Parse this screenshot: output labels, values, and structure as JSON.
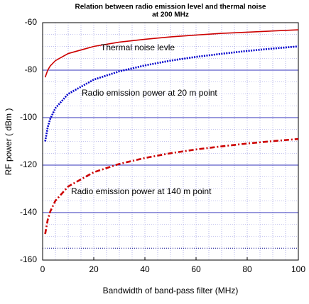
{
  "chart_data": {
    "type": "line",
    "title": [
      "Relation between radio emission level and thermal noise",
      "at 200 MHz"
    ],
    "x_label": "Bandwidth of band-pass filter (MHz)",
    "y_label": "RF power ( dBm )",
    "x": [
      1,
      2,
      3,
      5,
      10,
      20,
      30,
      40,
      50,
      60,
      70,
      80,
      90,
      100
    ],
    "series": [
      {
        "name": "Thermal noise levle",
        "color": "#cc0000",
        "style": "solid",
        "values": [
          -83,
          -80,
          -78.2,
          -76,
          -73,
          -70,
          -68.2,
          -67,
          -66,
          -65.2,
          -64.5,
          -64,
          -63.5,
          -63
        ]
      },
      {
        "name": "Radio emission power at 20 m point",
        "color": "#0000cc",
        "style": "dotted",
        "values": [
          -110,
          -104,
          -100.5,
          -96,
          -90,
          -84,
          -80.5,
          -78,
          -76,
          -74.4,
          -73.1,
          -71.9,
          -70.9,
          -70
        ]
      },
      {
        "name": "Radio emission power at 140 m point",
        "color": "#cc0000",
        "style": "dashdot",
        "values": [
          -149,
          -143,
          -139.5,
          -135,
          -129,
          -123,
          -119.5,
          -117,
          -115,
          -113.4,
          -112.1,
          -110.9,
          -109.9,
          -109
        ]
      }
    ],
    "reference_line": -155,
    "xlim": [
      0,
      100
    ],
    "xticks": [
      0,
      20,
      40,
      60,
      80,
      100
    ],
    "ylim": [
      -160,
      -60
    ],
    "yticks": [
      -60,
      -80,
      -100,
      -120,
      -140,
      -160
    ],
    "grid": true
  }
}
